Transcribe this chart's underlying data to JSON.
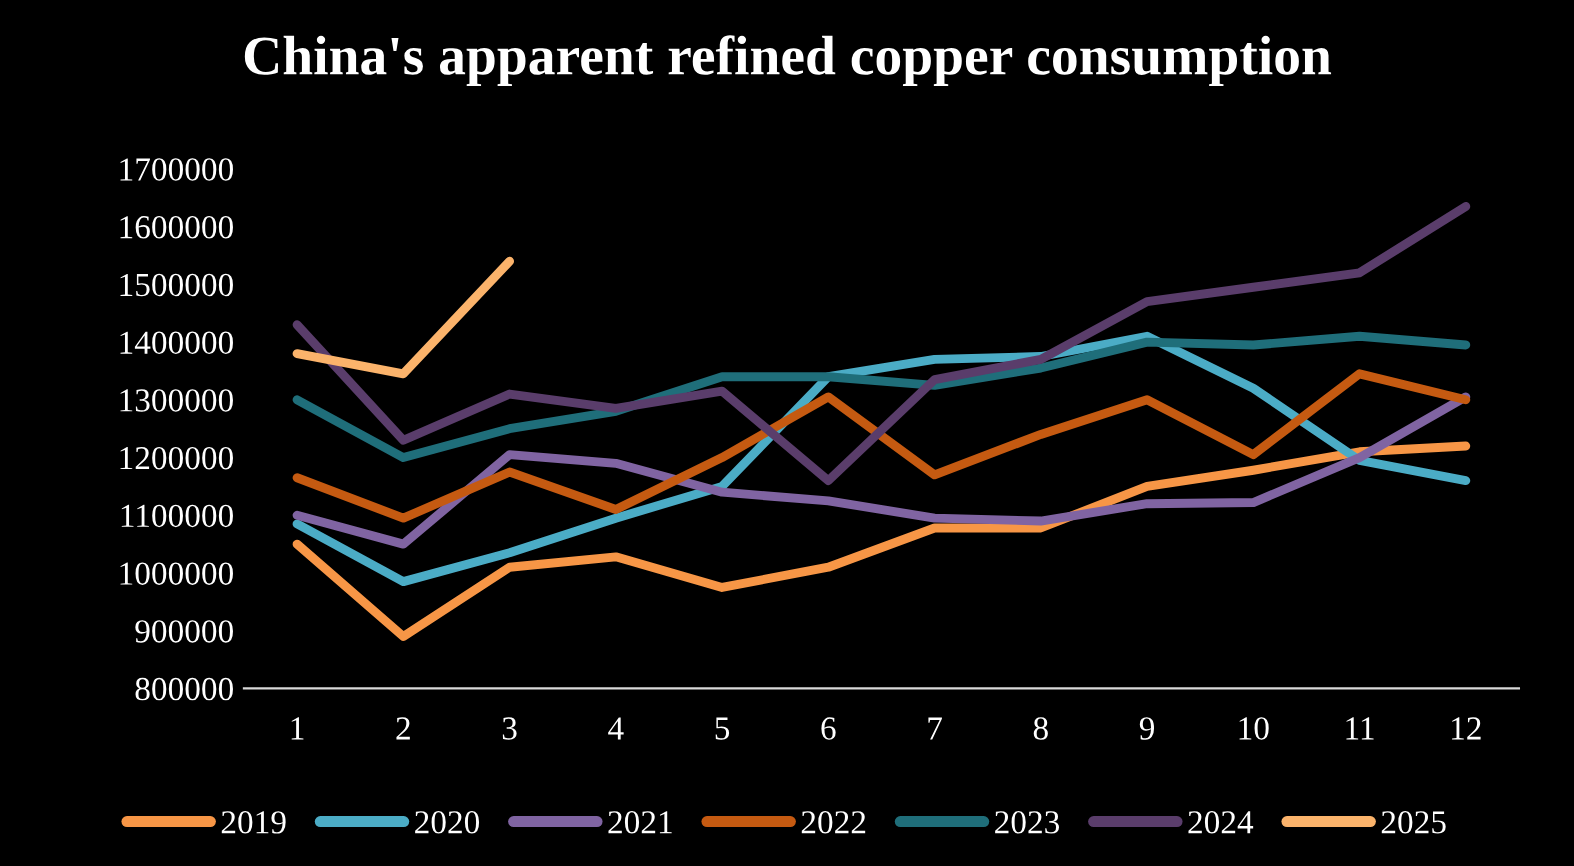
{
  "chart_data": {
    "type": "line",
    "title": "China's apparent refined copper consumption",
    "categories": [
      "1",
      "2",
      "3",
      "4",
      "5",
      "6",
      "7",
      "8",
      "9",
      "10",
      "11",
      "12"
    ],
    "ylim": [
      800000,
      1700000
    ],
    "yticks": [
      800000,
      900000,
      1000000,
      1100000,
      1200000,
      1300000,
      1400000,
      1500000,
      1600000,
      1700000
    ],
    "grid": false,
    "legend": "bottom",
    "marker": "none",
    "line_style": "solid",
    "series": [
      {
        "name": "2019",
        "color": "#f79646",
        "values": [
          1050000,
          890000,
          1010000,
          1028000,
          975000,
          1010000,
          1078000,
          1078000,
          1150000,
          1178000,
          1210000,
          1220000
        ]
      },
      {
        "name": "2020",
        "color": "#4bacc6",
        "values": [
          1085000,
          985000,
          1035000,
          1095000,
          1150000,
          1340000,
          1370000,
          1375000,
          1410000,
          1320000,
          1195000,
          1160000
        ]
      },
      {
        "name": "2021",
        "color": "#8064a2",
        "values": [
          1100000,
          1050000,
          1205000,
          1190000,
          1140000,
          1125000,
          1095000,
          1090000,
          1120000,
          1122000,
          1200000,
          1305000
        ]
      },
      {
        "name": "2022",
        "color": "#c55a11",
        "values": [
          1165000,
          1095000,
          1175000,
          1110000,
          1200000,
          1305000,
          1170000,
          1240000,
          1300000,
          1205000,
          1345000,
          1300000
        ]
      },
      {
        "name": "2023",
        "color": "#1f6e7a",
        "values": [
          1300000,
          1200000,
          1250000,
          1280000,
          1340000,
          1340000,
          1325000,
          1355000,
          1400000,
          1395000,
          1410000,
          1395000
        ]
      },
      {
        "name": "2024",
        "color": "#5a3d6b",
        "values": [
          1430000,
          1230000,
          1310000,
          1285000,
          1315000,
          1160000,
          1335000,
          1370000,
          1470000,
          1495000,
          1520000,
          1635000
        ]
      },
      {
        "name": "2025",
        "color": "#fbb36b",
        "values": [
          1380000,
          1345000,
          1540000,
          null,
          null,
          null,
          null,
          null,
          null,
          null,
          null,
          null
        ]
      }
    ]
  }
}
